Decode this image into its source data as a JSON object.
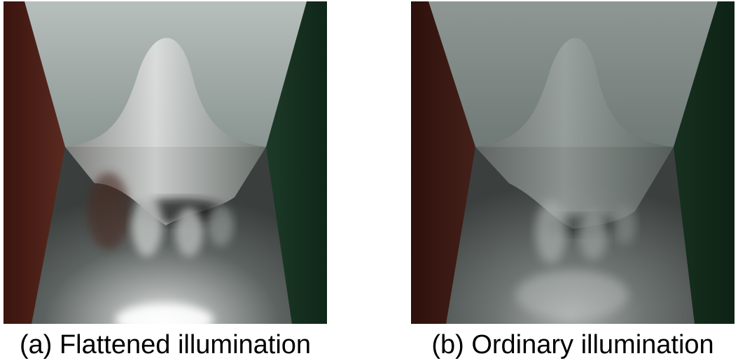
{
  "figures": [
    {
      "caption": "(a) Flattened illumination"
    },
    {
      "caption": "(b) Ordinary illumination"
    }
  ],
  "colors": {
    "background": "#ffffff",
    "left_wall": "#4a1c14",
    "right_wall": "#13301f",
    "ceiling": "#9aa6a2",
    "caption_text": "#000000"
  }
}
